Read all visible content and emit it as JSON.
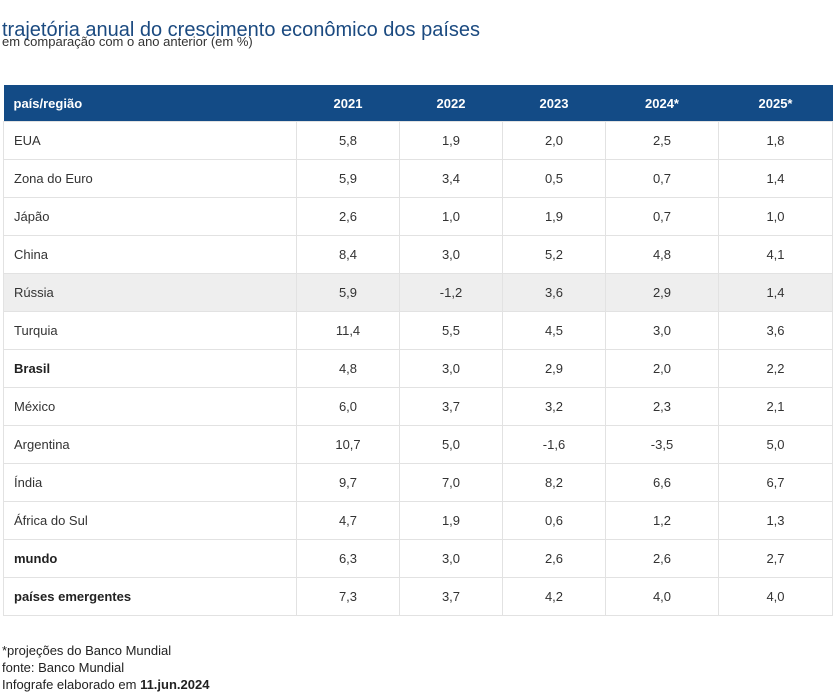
{
  "title": "trajetória anual do crescimento econômico dos países",
  "subtitle": "em comparação com o ano anterior (em %)",
  "chart_data": {
    "type": "table",
    "columns": [
      "país/região",
      "2021",
      "2022",
      "2023",
      "2024*",
      "2025*"
    ],
    "rows": [
      {
        "label": "EUA",
        "values": [
          "5,8",
          "1,9",
          "2,0",
          "2,5",
          "1,8"
        ],
        "bold": false,
        "shaded": false
      },
      {
        "label": "Zona do Euro",
        "values": [
          "5,9",
          "3,4",
          "0,5",
          "0,7",
          "1,4"
        ],
        "bold": false,
        "shaded": false
      },
      {
        "label": "Jápão",
        "values": [
          "2,6",
          "1,0",
          "1,9",
          "0,7",
          "1,0"
        ],
        "bold": false,
        "shaded": false
      },
      {
        "label": "China",
        "values": [
          "8,4",
          "3,0",
          "5,2",
          "4,8",
          "4,1"
        ],
        "bold": false,
        "shaded": false
      },
      {
        "label": "Rússia",
        "values": [
          "5,9",
          "-1,2",
          "3,6",
          "2,9",
          "1,4"
        ],
        "bold": false,
        "shaded": true
      },
      {
        "label": "Turquia",
        "values": [
          "11,4",
          "5,5",
          "4,5",
          "3,0",
          "3,6"
        ],
        "bold": false,
        "shaded": false
      },
      {
        "label": "Brasil",
        "values": [
          "4,8",
          "3,0",
          "2,9",
          "2,0",
          "2,2"
        ],
        "bold": true,
        "shaded": false
      },
      {
        "label": "México",
        "values": [
          "6,0",
          "3,7",
          "3,2",
          "2,3",
          "2,1"
        ],
        "bold": false,
        "shaded": false
      },
      {
        "label": "Argentina",
        "values": [
          "10,7",
          "5,0",
          "-1,6",
          "-3,5",
          "5,0"
        ],
        "bold": false,
        "shaded": false
      },
      {
        "label": "Índia",
        "values": [
          "9,7",
          "7,0",
          "8,2",
          "6,6",
          "6,7"
        ],
        "bold": false,
        "shaded": false
      },
      {
        "label": "África do Sul",
        "values": [
          "4,7",
          "1,9",
          "0,6",
          "1,2",
          "1,3"
        ],
        "bold": false,
        "shaded": false
      },
      {
        "label": "mundo",
        "values": [
          "6,3",
          "3,0",
          "2,6",
          "2,6",
          "2,7"
        ],
        "bold": true,
        "shaded": false
      },
      {
        "label": "países emergentes",
        "values": [
          "7,3",
          "3,7",
          "4,2",
          "4,0",
          "4,0"
        ],
        "bold": true,
        "shaded": false
      }
    ]
  },
  "notes": {
    "projection": "*projeções do Banco Mundial",
    "source": "fonte: Banco Mundial",
    "credit_prefix": "Infografe elaborado em",
    "credit_date": "11.jun.2024"
  },
  "colors": {
    "header_bg": "#134b86",
    "title": "#1b4a80",
    "shaded_row": "#eeeeee"
  }
}
